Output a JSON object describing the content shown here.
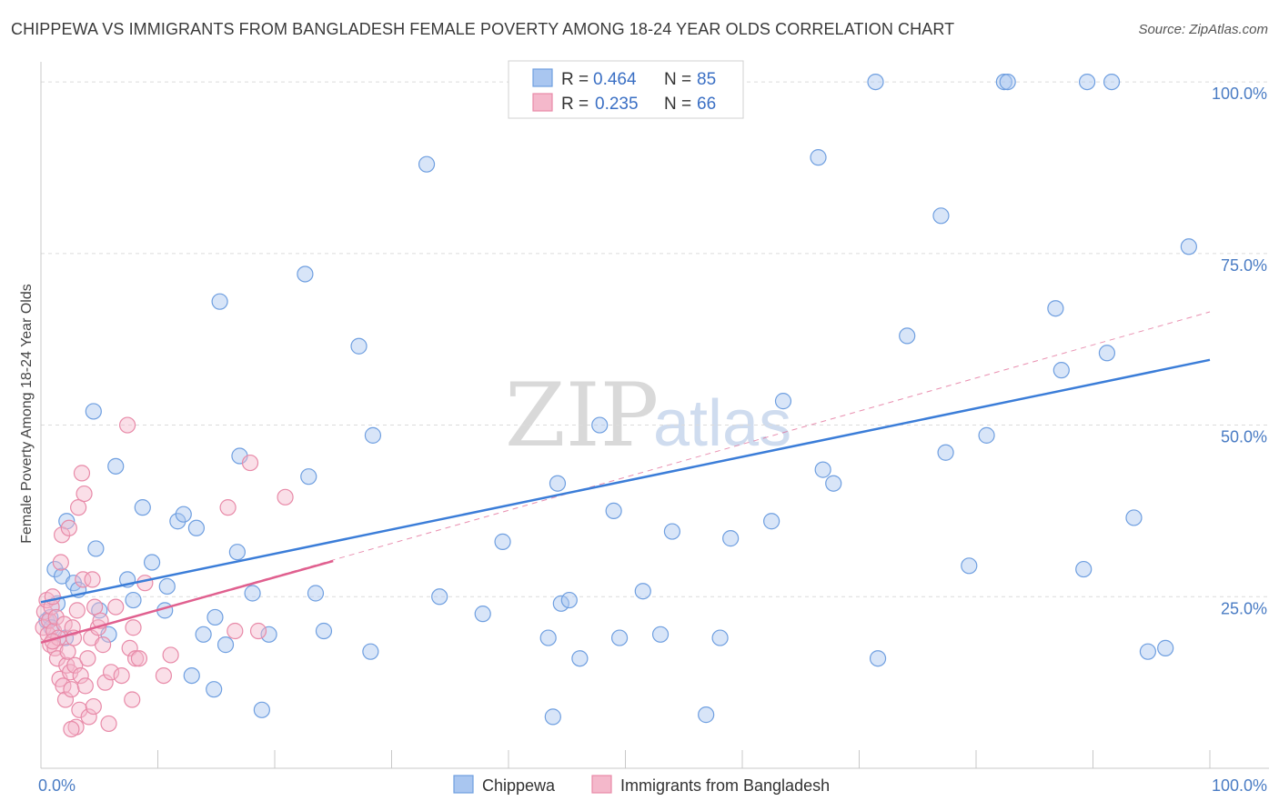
{
  "title": "CHIPPEWA VS IMMIGRANTS FROM BANGLADESH FEMALE POVERTY AMONG 18-24 YEAR OLDS CORRELATION CHART",
  "source": "Source: ZipAtlas.com",
  "watermark": {
    "zip": "ZIP",
    "atlas": "atlas"
  },
  "legend": {
    "rows": [
      {
        "r_label": "R =",
        "r_value": "0.464",
        "n_label": "N =",
        "n_value": "85"
      },
      {
        "r_label": "R =",
        "r_value": "0.235",
        "n_label": "N =",
        "n_value": "66"
      }
    ]
  },
  "chart_data": {
    "type": "scatter",
    "title": "CHIPPEWA VS IMMIGRANTS FROM BANGLADESH FEMALE POVERTY AMONG 18-24 YEAR OLDS CORRELATION CHART",
    "xlabel": "",
    "ylabel": "Female Poverty Among 18-24 Year Olds",
    "xlim": [
      0,
      100
    ],
    "ylim": [
      0,
      102
    ],
    "x_tick_labels": [
      "0.0%",
      "100.0%"
    ],
    "y_ticks": [
      25,
      50,
      75,
      100
    ],
    "y_tick_labels": [
      "25.0%",
      "50.0%",
      "75.0%",
      "100.0%"
    ],
    "grid": true,
    "legend_position": "top-center",
    "series": [
      {
        "name": "Chippewa",
        "color": "#a9c6f0",
        "edge_color": "#6f9fe0",
        "trend_color": "#3b7dd8",
        "R": 0.464,
        "N": 85,
        "trend": {
          "x": [
            0,
            100
          ],
          "y": [
            24.2,
            59.5
          ]
        },
        "points": [
          [
            0.5,
            21.5
          ],
          [
            0.8,
            22
          ],
          [
            1.2,
            29
          ],
          [
            1.8,
            28
          ],
          [
            2.2,
            36
          ],
          [
            2.8,
            27
          ],
          [
            3.2,
            26
          ],
          [
            4.5,
            52
          ],
          [
            4.7,
            32
          ],
          [
            5,
            23
          ],
          [
            5.8,
            19.5
          ],
          [
            6.4,
            44
          ],
          [
            7.4,
            27.5
          ],
          [
            7.9,
            24.5
          ],
          [
            8.7,
            38
          ],
          [
            9.5,
            30
          ],
          [
            10.6,
            23
          ],
          [
            10.8,
            26.5
          ],
          [
            11.7,
            36
          ],
          [
            12.2,
            37
          ],
          [
            12.9,
            13.5
          ],
          [
            13.3,
            35
          ],
          [
            13.9,
            19.5
          ],
          [
            14.8,
            11.5
          ],
          [
            14.9,
            22
          ],
          [
            15.3,
            68
          ],
          [
            15.8,
            18
          ],
          [
            16.8,
            31.5
          ],
          [
            17.0,
            45.5
          ],
          [
            18.1,
            25.5
          ],
          [
            18.9,
            8.5
          ],
          [
            19.5,
            19.5
          ],
          [
            22.6,
            72
          ],
          [
            22.9,
            42.5
          ],
          [
            23.5,
            25.5
          ],
          [
            24.2,
            20
          ],
          [
            27.2,
            61.5
          ],
          [
            28.2,
            17
          ],
          [
            28.4,
            48.5
          ],
          [
            33,
            88
          ],
          [
            34.1,
            25
          ],
          [
            37.8,
            22.5
          ],
          [
            39.5,
            33
          ],
          [
            43.4,
            19
          ],
          [
            43.8,
            7.5
          ],
          [
            44.2,
            41.5
          ],
          [
            44.5,
            24
          ],
          [
            45.2,
            24.5
          ],
          [
            46.1,
            16
          ],
          [
            47.8,
            50
          ],
          [
            49.0,
            37.5
          ],
          [
            49.5,
            19
          ],
          [
            51.5,
            25.8
          ],
          [
            53,
            19.5
          ],
          [
            54,
            34.5
          ],
          [
            56.9,
            7.8
          ],
          [
            58.1,
            19
          ],
          [
            59.0,
            33.5
          ],
          [
            62.5,
            36
          ],
          [
            63.5,
            53.5
          ],
          [
            66.5,
            89
          ],
          [
            66.9,
            43.5
          ],
          [
            67.8,
            41.5
          ],
          [
            71.6,
            16
          ],
          [
            74.1,
            63
          ],
          [
            77,
            80.5
          ],
          [
            77.4,
            46
          ],
          [
            79.4,
            29.5
          ],
          [
            80.9,
            48.5
          ],
          [
            89.5,
            100
          ],
          [
            91.6,
            100
          ],
          [
            82.4,
            100
          ],
          [
            82.7,
            100
          ],
          [
            71.4,
            100
          ],
          [
            86.8,
            67
          ],
          [
            87.3,
            58
          ],
          [
            89.2,
            29
          ],
          [
            91.2,
            60.5
          ],
          [
            93.5,
            36.5
          ],
          [
            94.7,
            17
          ],
          [
            96.2,
            17.5
          ],
          [
            98.2,
            76
          ],
          [
            0.9,
            20.5
          ],
          [
            1.4,
            24
          ],
          [
            2.1,
            19
          ]
        ]
      },
      {
        "name": "Immigrants from Bangladesh",
        "color": "#f4b8cb",
        "edge_color": "#e88aa8",
        "trend_color": "#e0608f",
        "R": 0.235,
        "N": 66,
        "trend": {
          "x": [
            0,
            25
          ],
          "y": [
            18.3,
            30.2
          ]
        },
        "trend_extended": {
          "x": [
            0,
            100
          ],
          "y": [
            18.3,
            66.5
          ]
        },
        "points": [
          [
            0.2,
            20.5
          ],
          [
            0.3,
            22.8
          ],
          [
            0.5,
            24.5
          ],
          [
            0.6,
            19.5
          ],
          [
            0.7,
            21.5
          ],
          [
            0.8,
            18
          ],
          [
            0.9,
            23.5
          ],
          [
            1,
            25
          ],
          [
            1.1,
            20
          ],
          [
            1.2,
            17.5
          ],
          [
            1.3,
            22
          ],
          [
            1.4,
            16
          ],
          [
            1.5,
            19
          ],
          [
            1.6,
            13
          ],
          [
            1.7,
            30
          ],
          [
            1.8,
            34
          ],
          [
            1.9,
            12
          ],
          [
            2,
            21
          ],
          [
            2.1,
            10
          ],
          [
            2.2,
            15
          ],
          [
            2.3,
            17
          ],
          [
            2.4,
            35
          ],
          [
            2.5,
            14
          ],
          [
            2.6,
            11.5
          ],
          [
            2.7,
            20.5
          ],
          [
            2.8,
            19
          ],
          [
            2.9,
            15
          ],
          [
            3,
            6
          ],
          [
            3.1,
            23
          ],
          [
            3.2,
            38
          ],
          [
            3.3,
            8.5
          ],
          [
            3.4,
            13.5
          ],
          [
            3.5,
            43
          ],
          [
            3.6,
            27.5
          ],
          [
            3.7,
            40
          ],
          [
            3.8,
            12
          ],
          [
            4.0,
            16
          ],
          [
            4.1,
            7.5
          ],
          [
            4.3,
            19
          ],
          [
            4.4,
            27.5
          ],
          [
            4.5,
            9
          ],
          [
            4.6,
            23.5
          ],
          [
            4.9,
            20.5
          ],
          [
            5.1,
            21.5
          ],
          [
            5.3,
            18
          ],
          [
            5.5,
            12.5
          ],
          [
            5.8,
            6.5
          ],
          [
            6,
            14
          ],
          [
            6.4,
            23.5
          ],
          [
            6.9,
            13.5
          ],
          [
            7.4,
            50
          ],
          [
            7.6,
            17.5
          ],
          [
            7.8,
            10
          ],
          [
            7.9,
            20.5
          ],
          [
            8.1,
            16
          ],
          [
            8.4,
            16
          ],
          [
            8.9,
            27
          ],
          [
            10.5,
            13.5
          ],
          [
            11.1,
            16.5
          ],
          [
            16,
            38
          ],
          [
            16.6,
            20
          ],
          [
            17.9,
            44.5
          ],
          [
            18.6,
            20
          ],
          [
            20.9,
            39.5
          ],
          [
            2.6,
            5.7
          ],
          [
            1.0,
            18.5
          ]
        ]
      }
    ]
  },
  "bottom_legend": [
    {
      "label": "Chippewa"
    },
    {
      "label": "Immigrants from Bangladesh"
    }
  ]
}
